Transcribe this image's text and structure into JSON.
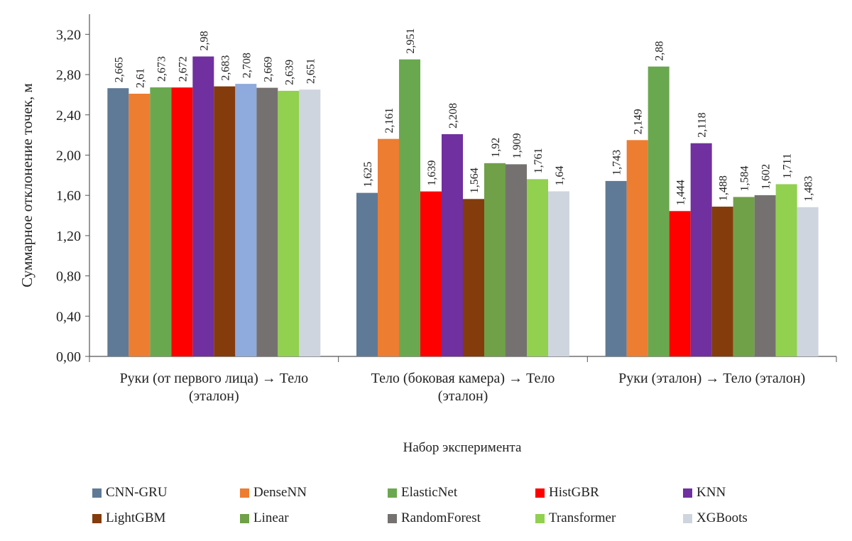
{
  "chart_data": {
    "type": "bar",
    "title": "",
    "xlabel": "Набор эксперимента",
    "ylabel": "Суммарное отклонение точек, м",
    "ylim": [
      0,
      3.4
    ],
    "yticks": [
      "0,00",
      "0,40",
      "0,80",
      "1,20",
      "1,60",
      "2,00",
      "2,40",
      "2,80",
      "3,20"
    ],
    "categories": [
      [
        "Руки (от первого лица) → Тело",
        "(эталон)"
      ],
      [
        "Тело (боковая камера) → Тело",
        "(эталон)"
      ],
      [
        "Руки (эталон) → Тело (эталон)"
      ]
    ],
    "series": [
      {
        "name": "CNN-GRU",
        "color": "#5f7a96",
        "values": [
          2.665,
          1.625,
          1.743
        ],
        "labels": [
          "2,665",
          "1,625",
          "1,743"
        ]
      },
      {
        "name": "DenseNN",
        "color": "#ed7d31",
        "values": [
          2.61,
          2.161,
          2.149
        ],
        "labels": [
          "2,61",
          "2,161",
          "2,149"
        ]
      },
      {
        "name": "ElasticNet",
        "color": "#6aa84f",
        "values": [
          2.673,
          2.951,
          2.88
        ],
        "labels": [
          "2,673",
          "2,951",
          "2,88"
        ]
      },
      {
        "name": "HistGBR",
        "color": "#ff0000",
        "values": [
          2.672,
          1.639,
          1.444
        ],
        "labels": [
          "2,672",
          "1,639",
          "1,444"
        ]
      },
      {
        "name": "KNN",
        "color": "#7030a0",
        "values": [
          2.98,
          2.208,
          2.118
        ],
        "labels": [
          "2,98",
          "2,208",
          "2,118"
        ]
      },
      {
        "name": "LightGBM",
        "color": "#843c0c",
        "values": [
          2.683,
          1.564,
          1.488
        ],
        "labels": [
          "2,683",
          "1,564",
          "1,488"
        ]
      },
      {
        "name": "Linear",
        "color": "#70a048",
        "values": [
          2.708,
          1.92,
          1.584
        ],
        "labels": [
          "2,708",
          "1,92",
          "1,584"
        ],
        "color_first_group": "#8faadc"
      },
      {
        "name": "RandomForest",
        "color": "#767171",
        "values": [
          2.669,
          1.909,
          1.602
        ],
        "labels": [
          "2,669",
          "1,909",
          "1,602"
        ]
      },
      {
        "name": "Transformer",
        "color": "#92d050",
        "values": [
          2.639,
          1.761,
          1.711
        ],
        "labels": [
          "2,639",
          "1,761",
          "1,711"
        ]
      },
      {
        "name": "XGBoots",
        "color": "#cfd5de",
        "values": [
          2.651,
          1.64,
          1.483
        ],
        "labels": [
          "2,651",
          "1,64",
          "1,483"
        ]
      }
    ],
    "legend": "bottom",
    "grid": false
  }
}
